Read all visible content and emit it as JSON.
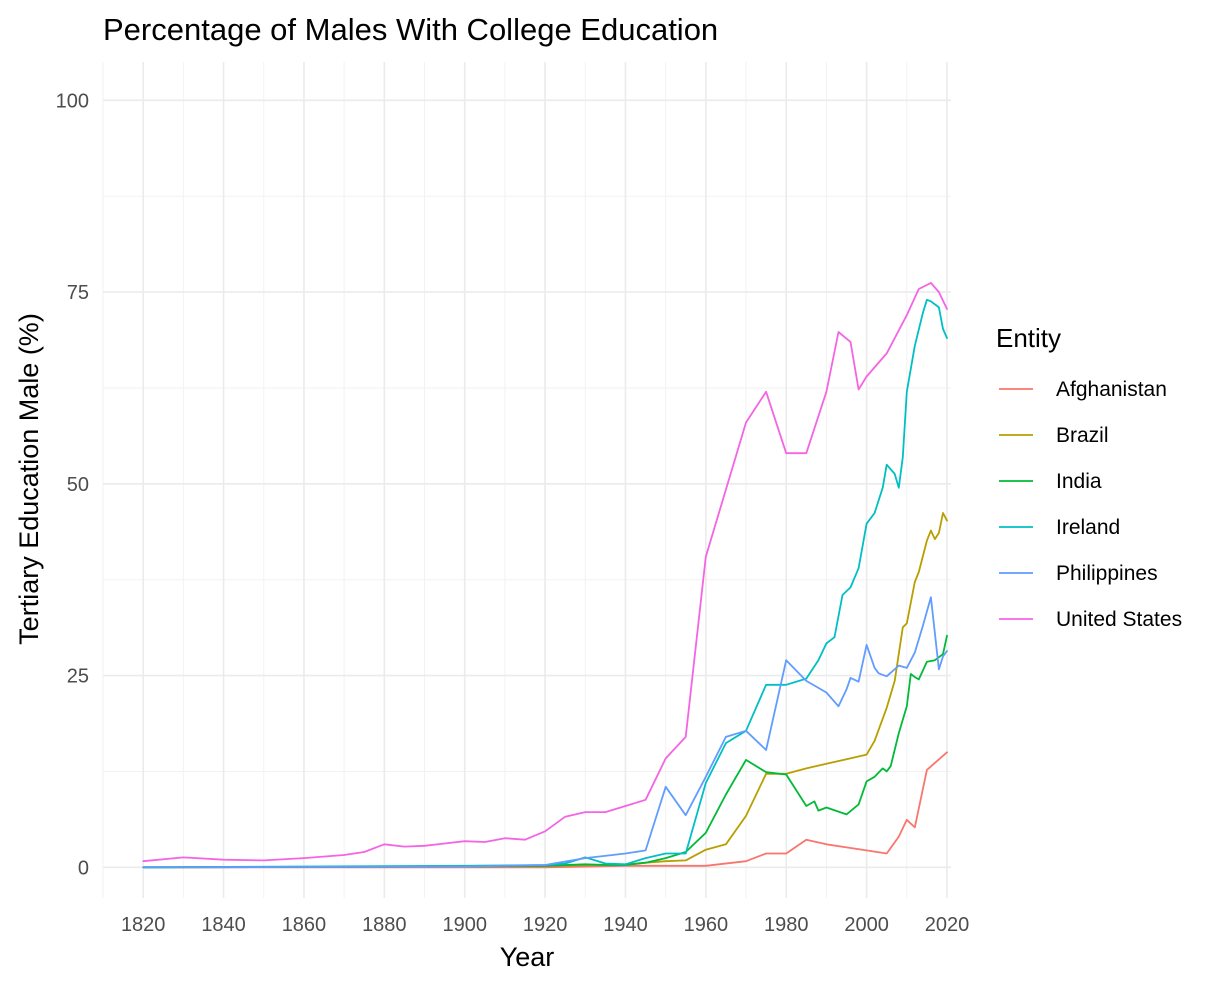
{
  "chart_data": {
    "type": "line",
    "title": "Percentage of Males With College Education",
    "xlabel": "Year",
    "ylabel": "Tertiary Education Male (%)",
    "xlim": [
      1810,
      2021
    ],
    "ylim": [
      -4,
      105
    ],
    "x_ticks": [
      1820,
      1840,
      1860,
      1880,
      1900,
      1920,
      1940,
      1960,
      1980,
      2000,
      2020
    ],
    "y_ticks": [
      0,
      25,
      50,
      75,
      100
    ],
    "grid": true,
    "legend": {
      "title": "Entity",
      "position": "right"
    },
    "series": [
      {
        "name": "Afghanistan",
        "color": "#F8766D",
        "points": [
          [
            1820,
            0
          ],
          [
            1900,
            0
          ],
          [
            1920,
            0
          ],
          [
            1940,
            0.2
          ],
          [
            1950,
            0.2
          ],
          [
            1960,
            0.2
          ],
          [
            1970,
            0.8
          ],
          [
            1975,
            1.8
          ],
          [
            1980,
            1.8
          ],
          [
            1985,
            3.6
          ],
          [
            1990,
            3.0
          ],
          [
            1995,
            2.6
          ],
          [
            2000,
            2.2
          ],
          [
            2005,
            1.8
          ],
          [
            2008,
            4.0
          ],
          [
            2010,
            6.2
          ],
          [
            2012,
            5.2
          ],
          [
            2015,
            12.7
          ],
          [
            2020,
            15.0
          ]
        ]
      },
      {
        "name": "Brazil",
        "color": "#B79F00",
        "points": [
          [
            1820,
            0
          ],
          [
            1900,
            0.1
          ],
          [
            1920,
            0.2
          ],
          [
            1940,
            0.4
          ],
          [
            1950,
            0.8
          ],
          [
            1955,
            0.9
          ],
          [
            1960,
            2.3
          ],
          [
            1965,
            3.0
          ],
          [
            1970,
            6.7
          ],
          [
            1975,
            12.2
          ],
          [
            1980,
            12.2
          ],
          [
            1985,
            12.9
          ],
          [
            1990,
            13.5
          ],
          [
            1995,
            14.1
          ],
          [
            2000,
            14.7
          ],
          [
            2002,
            16.5
          ],
          [
            2005,
            20.8
          ],
          [
            2007,
            24.3
          ],
          [
            2009,
            31.3
          ],
          [
            2010,
            31.8
          ],
          [
            2012,
            37.2
          ],
          [
            2013,
            38.5
          ],
          [
            2015,
            42.6
          ],
          [
            2016,
            43.9
          ],
          [
            2017,
            42.8
          ],
          [
            2018,
            43.6
          ],
          [
            2019,
            46.2
          ],
          [
            2020,
            45.2
          ]
        ]
      },
      {
        "name": "India",
        "color": "#00BA38",
        "points": [
          [
            1820,
            0
          ],
          [
            1900,
            0.1
          ],
          [
            1920,
            0.2
          ],
          [
            1930,
            0.4
          ],
          [
            1935,
            0.3
          ],
          [
            1940,
            0.3
          ],
          [
            1945,
            0.6
          ],
          [
            1950,
            1.2
          ],
          [
            1955,
            2.0
          ],
          [
            1960,
            4.5
          ],
          [
            1965,
            9.5
          ],
          [
            1970,
            14.0
          ],
          [
            1975,
            12.4
          ],
          [
            1980,
            12.1
          ],
          [
            1985,
            8.0
          ],
          [
            1987,
            8.6
          ],
          [
            1988,
            7.4
          ],
          [
            1990,
            7.8
          ],
          [
            1995,
            6.9
          ],
          [
            1998,
            8.2
          ],
          [
            2000,
            11.2
          ],
          [
            2002,
            11.8
          ],
          [
            2004,
            12.9
          ],
          [
            2005,
            12.5
          ],
          [
            2006,
            13.2
          ],
          [
            2008,
            17.5
          ],
          [
            2010,
            21.0
          ],
          [
            2011,
            25.2
          ],
          [
            2012,
            24.8
          ],
          [
            2013,
            24.5
          ],
          [
            2015,
            26.8
          ],
          [
            2017,
            27.0
          ],
          [
            2019,
            27.8
          ],
          [
            2020,
            30.2
          ]
        ]
      },
      {
        "name": "Ireland",
        "color": "#00BFC4",
        "points": [
          [
            1820,
            0
          ],
          [
            1900,
            0.2
          ],
          [
            1920,
            0.3
          ],
          [
            1925,
            0.5
          ],
          [
            1930,
            1.3
          ],
          [
            1935,
            0.5
          ],
          [
            1940,
            0.4
          ],
          [
            1945,
            1.2
          ],
          [
            1950,
            1.8
          ],
          [
            1955,
            1.8
          ],
          [
            1960,
            11.0
          ],
          [
            1965,
            16.2
          ],
          [
            1970,
            17.8
          ],
          [
            1975,
            23.8
          ],
          [
            1980,
            23.8
          ],
          [
            1985,
            24.6
          ],
          [
            1988,
            27.0
          ],
          [
            1990,
            29.2
          ],
          [
            1992,
            30.0
          ],
          [
            1994,
            35.5
          ],
          [
            1996,
            36.5
          ],
          [
            1998,
            39.0
          ],
          [
            2000,
            44.8
          ],
          [
            2002,
            46.2
          ],
          [
            2004,
            49.5
          ],
          [
            2005,
            52.5
          ],
          [
            2007,
            51.3
          ],
          [
            2008,
            49.5
          ],
          [
            2009,
            53.5
          ],
          [
            2010,
            62.0
          ],
          [
            2012,
            68.0
          ],
          [
            2014,
            72.3
          ],
          [
            2015,
            74.0
          ],
          [
            2016,
            73.8
          ],
          [
            2018,
            73.0
          ],
          [
            2019,
            70.2
          ],
          [
            2020,
            69.0
          ]
        ]
      },
      {
        "name": "Philippines",
        "color": "#619CFF",
        "points": [
          [
            1820,
            0
          ],
          [
            1900,
            0.1
          ],
          [
            1920,
            0.3
          ],
          [
            1930,
            1.2
          ],
          [
            1940,
            1.8
          ],
          [
            1945,
            2.2
          ],
          [
            1950,
            10.5
          ],
          [
            1955,
            6.8
          ],
          [
            1960,
            11.8
          ],
          [
            1965,
            17.0
          ],
          [
            1970,
            17.8
          ],
          [
            1975,
            15.3
          ],
          [
            1980,
            27.0
          ],
          [
            1985,
            24.3
          ],
          [
            1990,
            22.8
          ],
          [
            1993,
            21.0
          ],
          [
            1995,
            23.2
          ],
          [
            1996,
            24.7
          ],
          [
            1998,
            24.2
          ],
          [
            2000,
            29.0
          ],
          [
            2002,
            26.0
          ],
          [
            2003,
            25.3
          ],
          [
            2005,
            24.9
          ],
          [
            2008,
            26.3
          ],
          [
            2010,
            26.0
          ],
          [
            2012,
            28.0
          ],
          [
            2014,
            31.5
          ],
          [
            2016,
            35.2
          ],
          [
            2018,
            25.8
          ],
          [
            2019,
            27.5
          ],
          [
            2020,
            28.2
          ]
        ]
      },
      {
        "name": "United States",
        "color": "#F564E3",
        "points": [
          [
            1820,
            0.8
          ],
          [
            1830,
            1.3
          ],
          [
            1840,
            1.0
          ],
          [
            1850,
            0.9
          ],
          [
            1860,
            1.2
          ],
          [
            1870,
            1.6
          ],
          [
            1875,
            2.0
          ],
          [
            1880,
            3.0
          ],
          [
            1885,
            2.7
          ],
          [
            1890,
            2.8
          ],
          [
            1895,
            3.1
          ],
          [
            1900,
            3.4
          ],
          [
            1905,
            3.3
          ],
          [
            1910,
            3.8
          ],
          [
            1915,
            3.6
          ],
          [
            1920,
            4.7
          ],
          [
            1925,
            6.6
          ],
          [
            1930,
            7.2
          ],
          [
            1935,
            7.2
          ],
          [
            1940,
            8.0
          ],
          [
            1945,
            8.8
          ],
          [
            1950,
            14.2
          ],
          [
            1955,
            17.0
          ],
          [
            1960,
            40.5
          ],
          [
            1970,
            58.0
          ],
          [
            1975,
            62.0
          ],
          [
            1980,
            54.0
          ],
          [
            1985,
            54.0
          ],
          [
            1990,
            62.0
          ],
          [
            1993,
            69.8
          ],
          [
            1996,
            68.5
          ],
          [
            1998,
            62.3
          ],
          [
            2000,
            64.0
          ],
          [
            2005,
            67.0
          ],
          [
            2010,
            72.0
          ],
          [
            2013,
            75.4
          ],
          [
            2016,
            76.2
          ],
          [
            2018,
            75.0
          ],
          [
            2020,
            72.8
          ]
        ]
      }
    ]
  }
}
